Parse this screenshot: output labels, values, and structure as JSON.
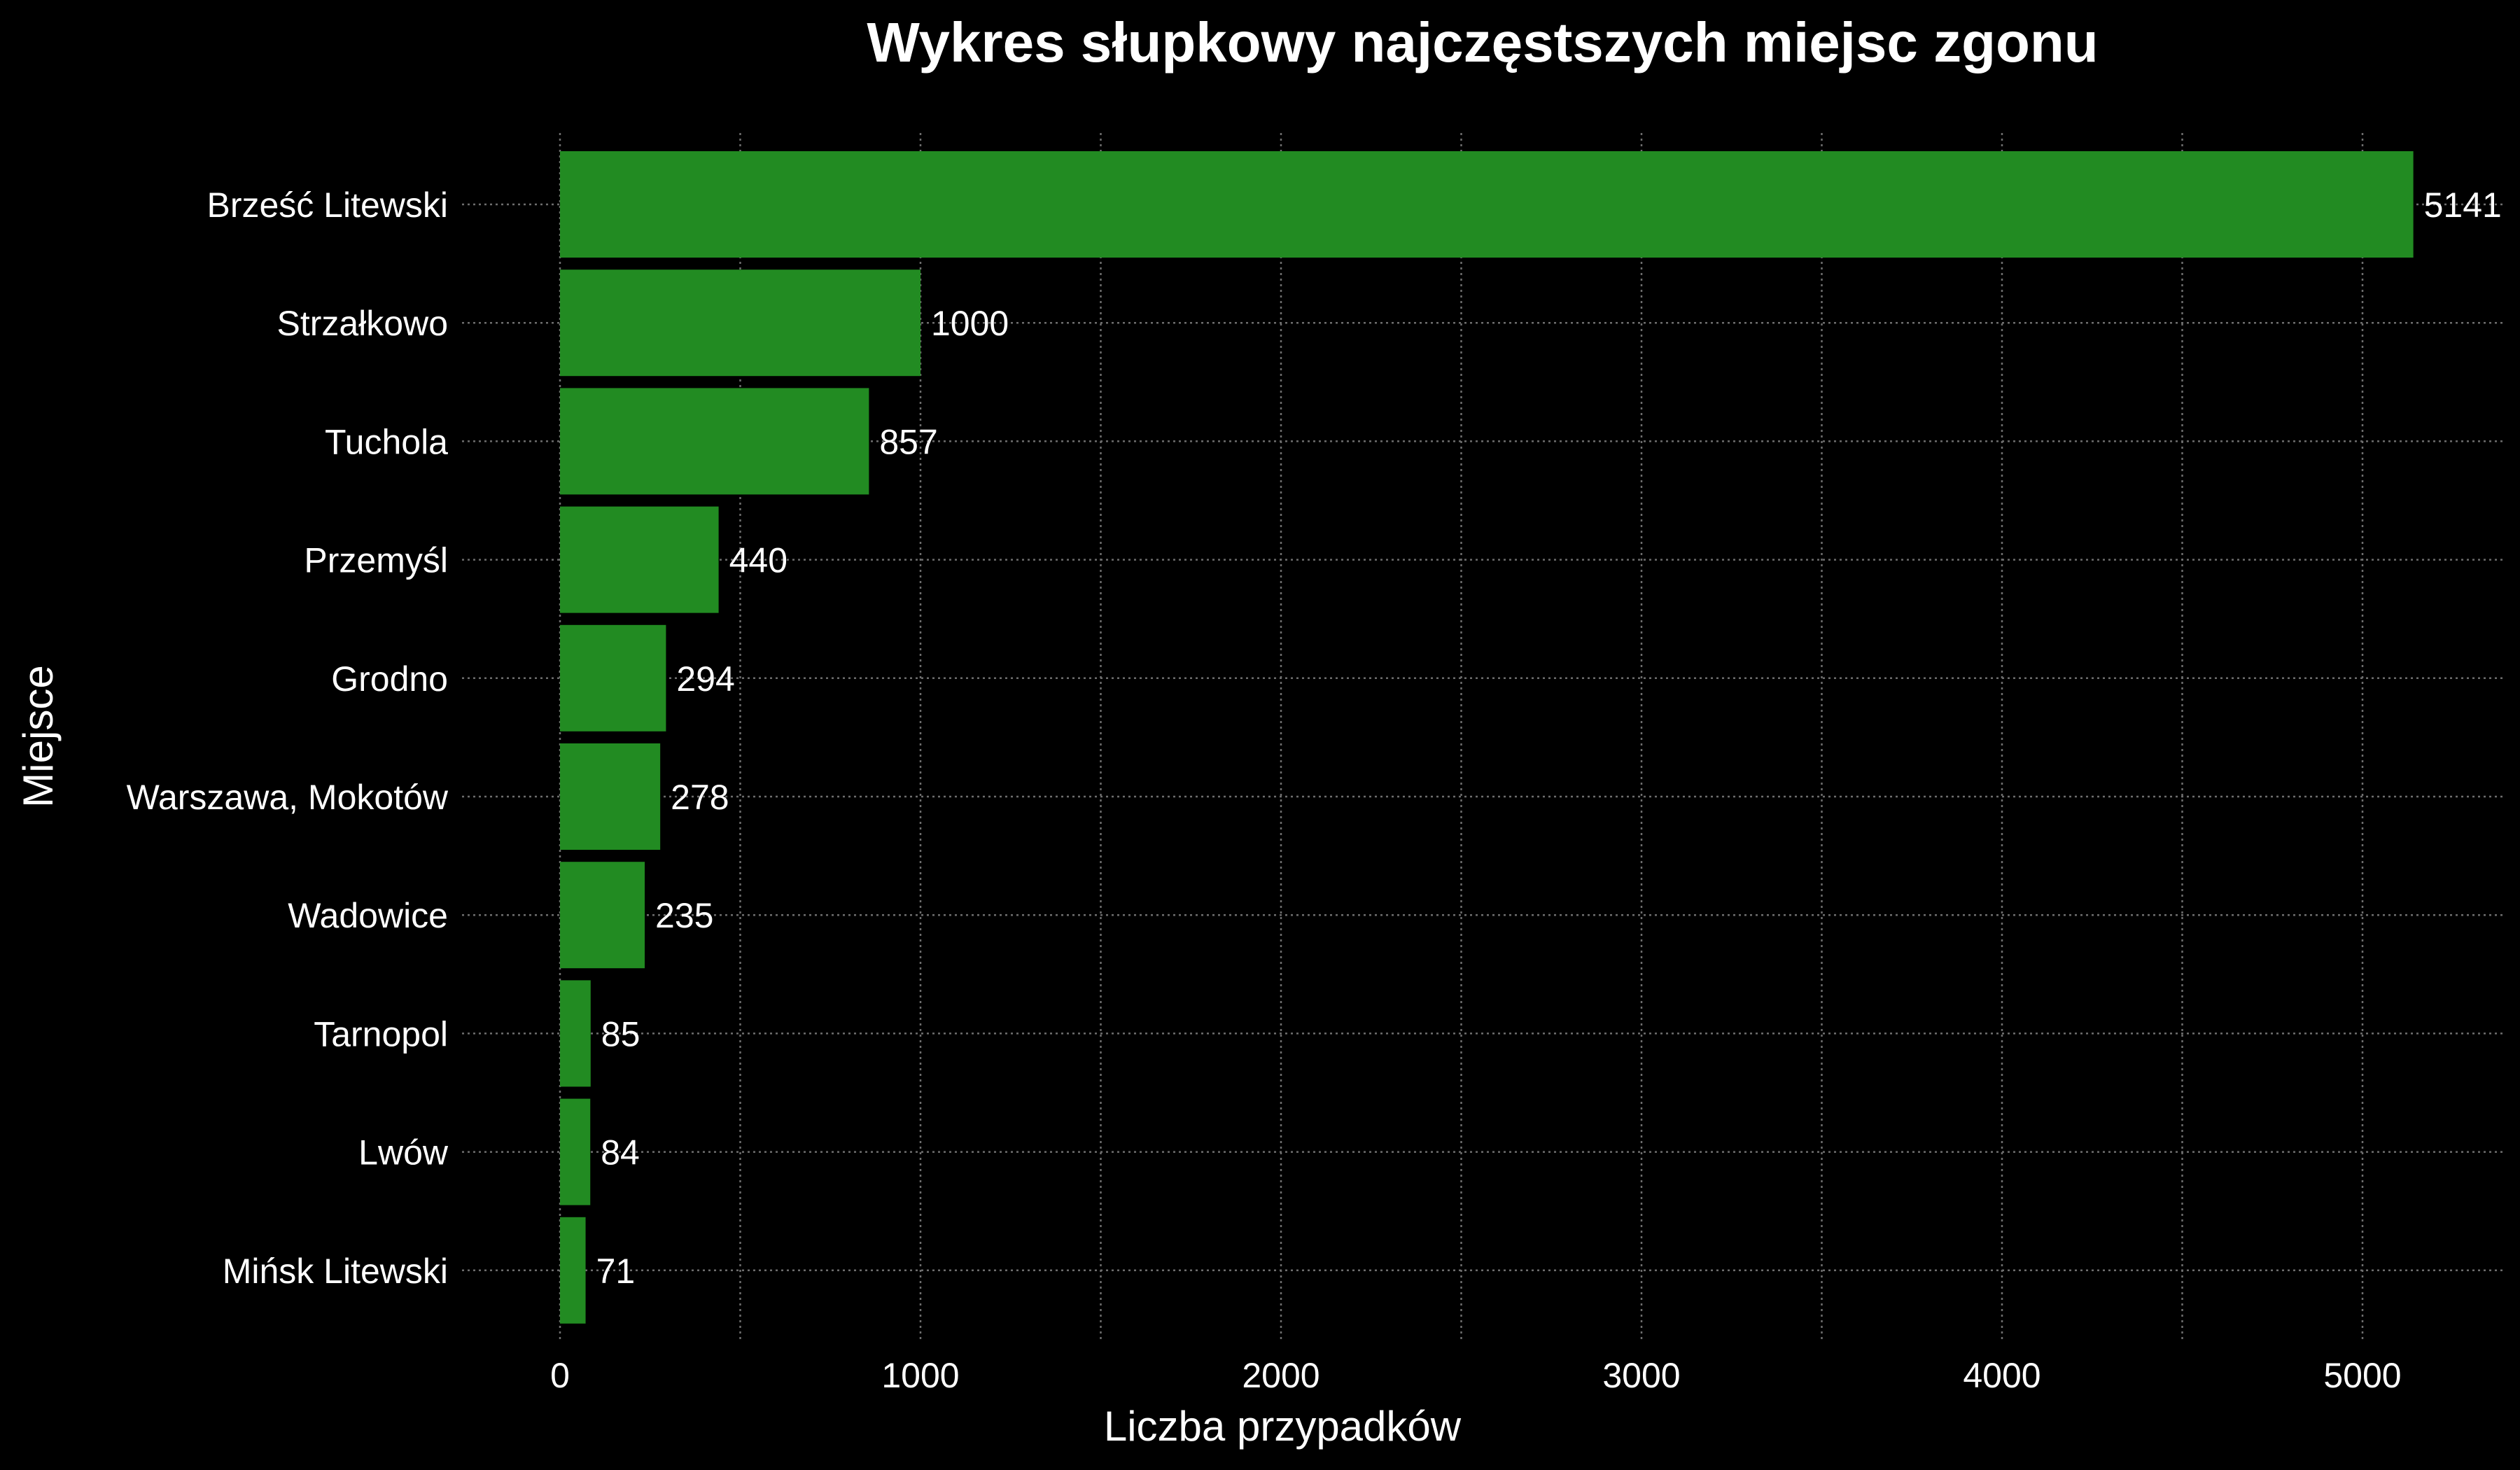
{
  "chart_data": {
    "type": "bar",
    "orientation": "horizontal",
    "title": "Wykres słupkowy najczęstszych miejsc zgonu",
    "xlabel": "Liczba przypadków",
    "ylabel": "Miejsce",
    "categories": [
      "Brześć Litewski",
      "Strzałkowo",
      "Tuchola",
      "Przemyśl",
      "Grodno",
      "Warszawa, Mokotów",
      "Wadowice",
      "Tarnopol",
      "Lwów",
      "Mińsk Litewski"
    ],
    "values": [
      5141,
      1000,
      857,
      440,
      294,
      278,
      235,
      85,
      84,
      71
    ],
    "xlim": [
      0,
      5400
    ],
    "xticks": [
      0,
      1000,
      2000,
      3000,
      4000,
      5000
    ],
    "grid": true,
    "bar_color": "#228b22",
    "background_color": "#000000",
    "text_color": "#ffffff",
    "grid_color": "#6e6e6e"
  }
}
